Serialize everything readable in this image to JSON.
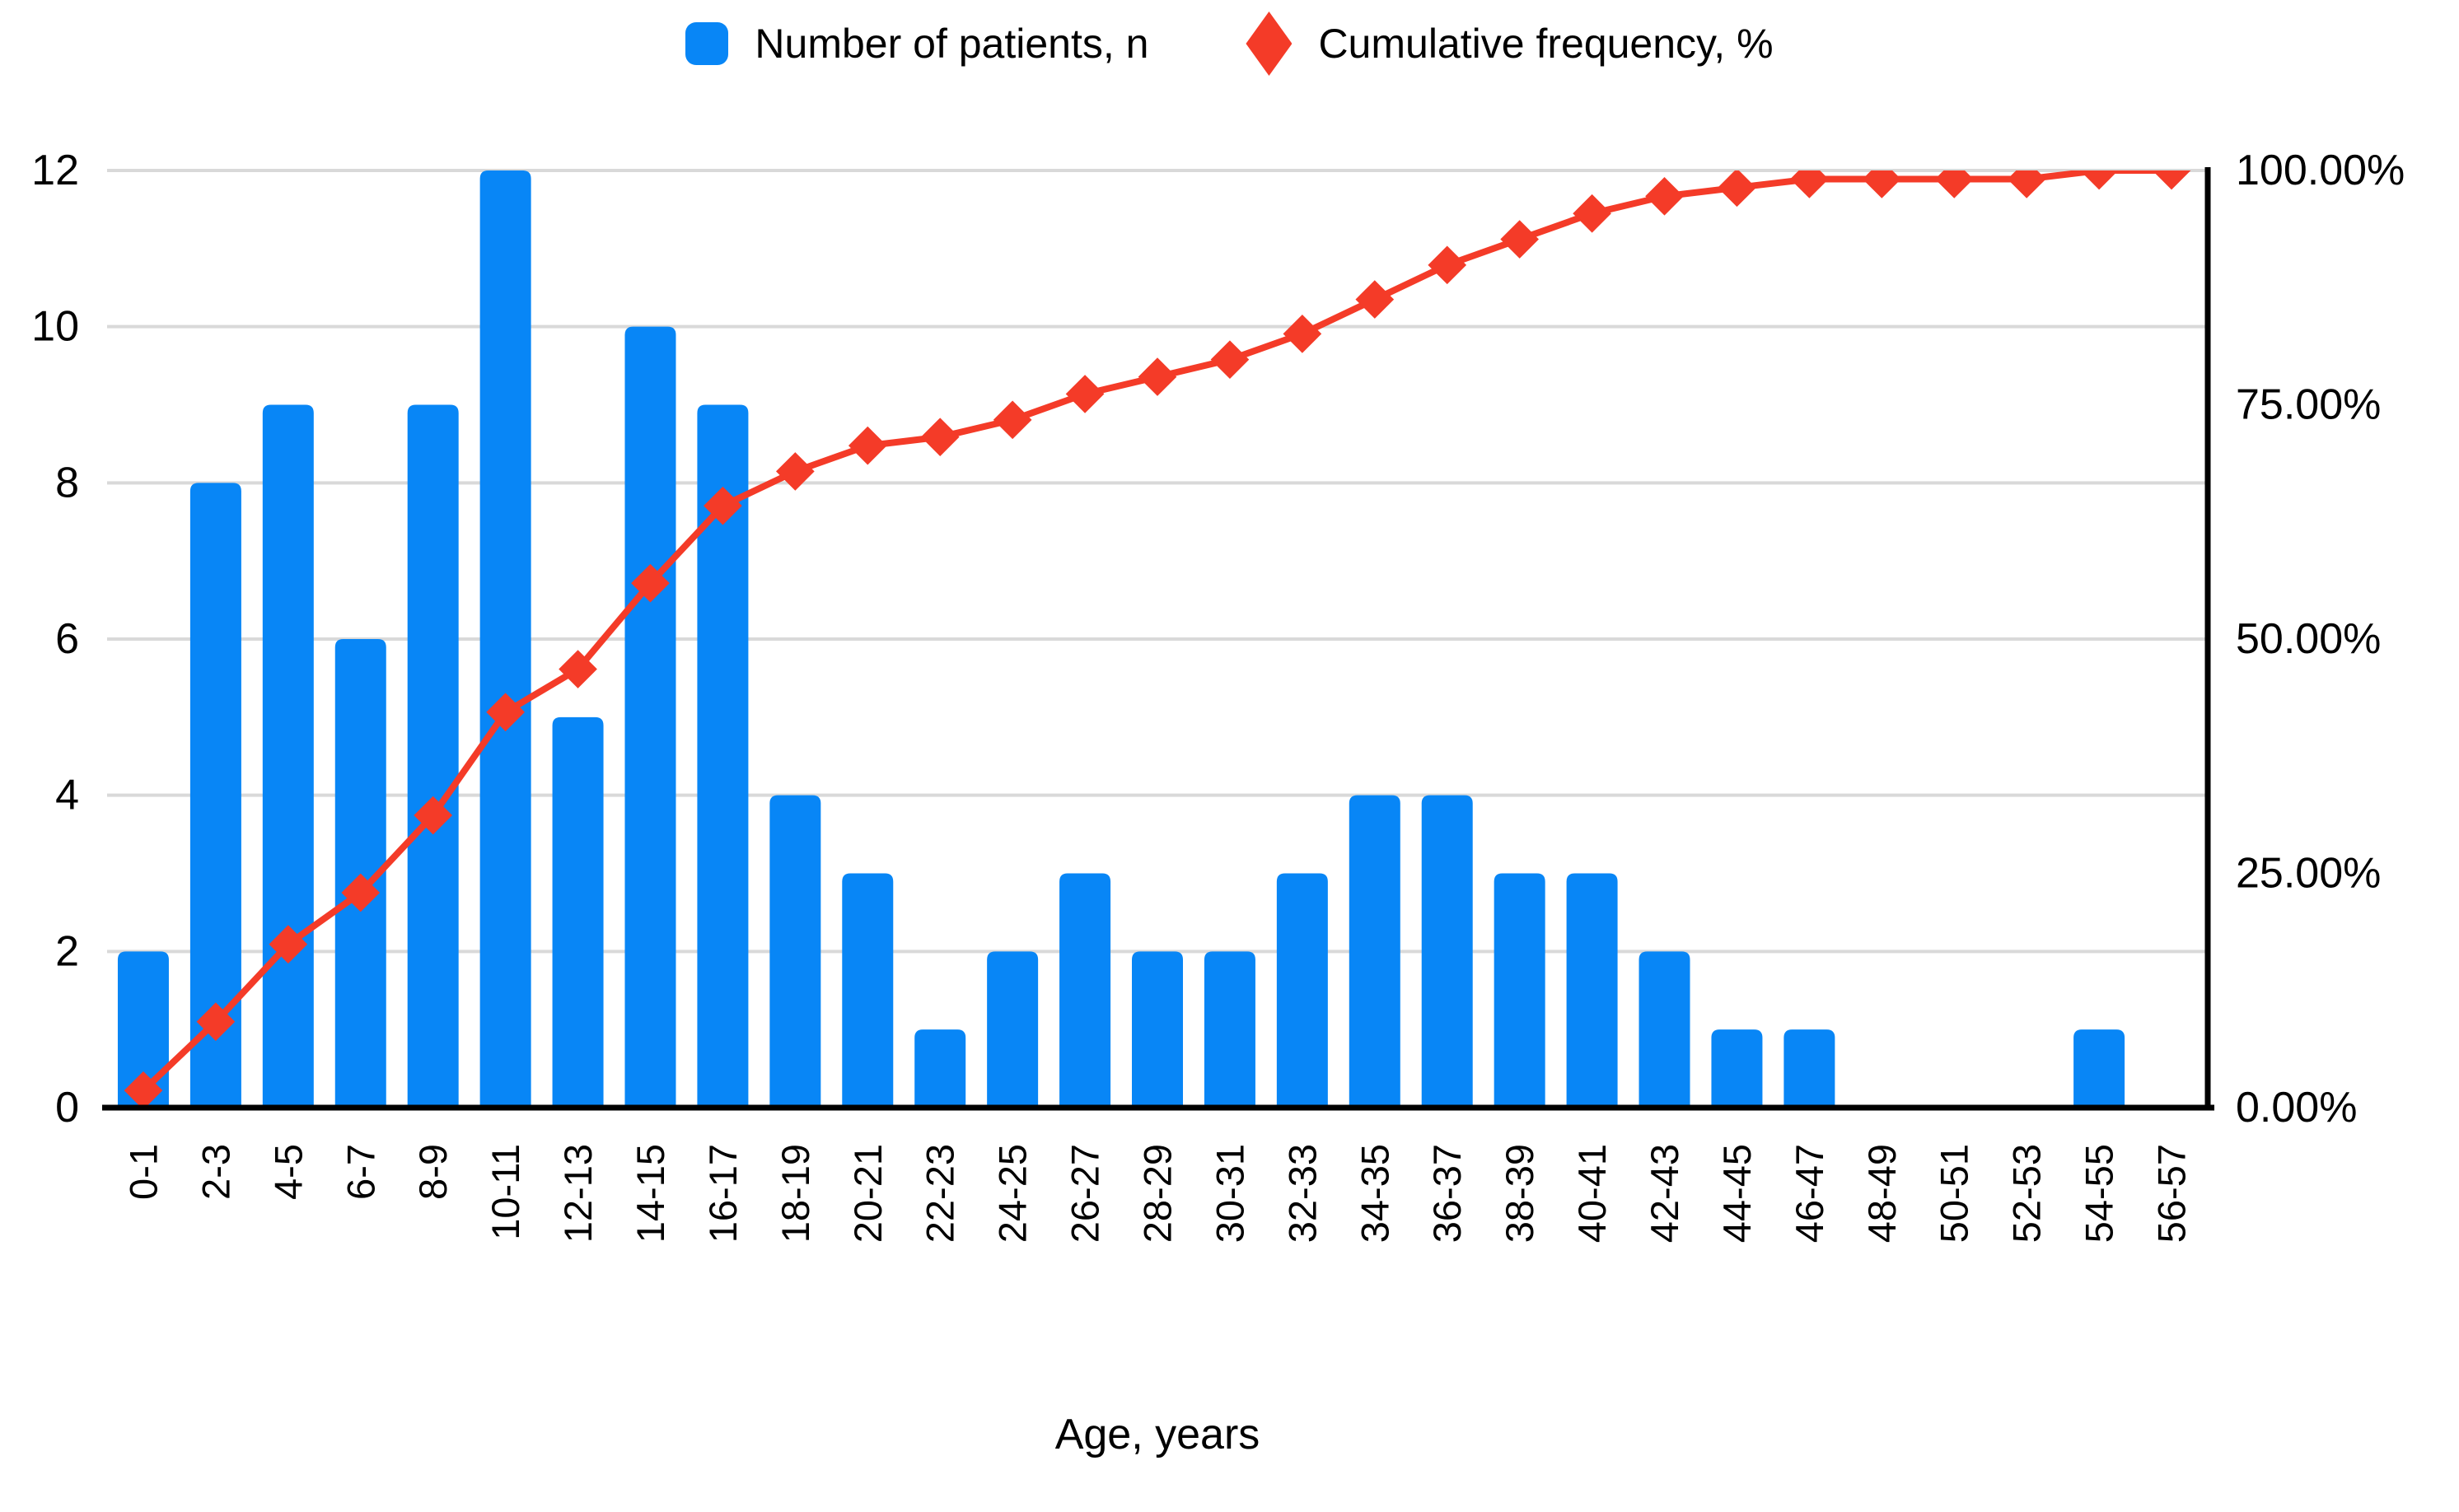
{
  "chart_data": {
    "type": "bar",
    "subtype": "pareto-combo",
    "title": "",
    "xlabel": "Age, years",
    "categories": [
      "0-1",
      "2-3",
      "4-5",
      "6-7",
      "8-9",
      "10-11",
      "12-13",
      "14-15",
      "16-17",
      "18-19",
      "20-21",
      "22-23",
      "24-25",
      "26-27",
      "28-29",
      "30-31",
      "32-33",
      "34-35",
      "36-37",
      "38-39",
      "40-41",
      "42-43",
      "44-45",
      "46-47",
      "48-49",
      "50-51",
      "52-53",
      "54-55",
      "56-57"
    ],
    "series": [
      {
        "name": "Number of patients, n",
        "type": "bar",
        "axis": "left",
        "color": "#0886f6",
        "values": [
          2,
          8,
          9,
          6,
          9,
          12,
          5,
          10,
          9,
          4,
          3,
          1,
          2,
          3,
          2,
          2,
          3,
          4,
          4,
          3,
          3,
          2,
          1,
          1,
          0,
          0,
          0,
          1,
          0
        ]
      },
      {
        "name": "Cumulative frequency, %",
        "type": "line",
        "axis": "right",
        "color": "#f43b28",
        "marker": "diamond",
        "values": [
          1.83,
          9.17,
          17.43,
          22.94,
          31.19,
          42.2,
          46.79,
          55.96,
          64.22,
          67.89,
          70.64,
          71.56,
          73.39,
          76.15,
          77.98,
          79.82,
          82.57,
          86.24,
          89.91,
          92.66,
          95.41,
          97.25,
          98.17,
          99.08,
          99.08,
          99.08,
          99.08,
          100.0,
          100.0
        ]
      }
    ],
    "left_axis": {
      "min": 0,
      "max": 12,
      "tick_values": [
        0,
        2,
        4,
        6,
        8,
        10,
        12
      ],
      "tick_labels": [
        "0",
        "2",
        "4",
        "6",
        "8",
        "10",
        "12"
      ]
    },
    "right_axis": {
      "min": 0,
      "max": 100,
      "tick_values": [
        0,
        25,
        50,
        75,
        100
      ],
      "tick_labels": [
        "0.00%",
        "25.00%",
        "50.00%",
        "75.00%",
        "100.00%"
      ]
    },
    "grid": true,
    "legend_position": "top",
    "gridline_color": "#d9d9d9",
    "axis_line_color": "#000000",
    "label_color": "#000000"
  },
  "legend": {
    "items": [
      {
        "label": "Number of patients, n",
        "swatch": "square",
        "color": "#0886f6"
      },
      {
        "label": "Cumulative frequency, %",
        "swatch": "diamond",
        "color": "#f43b28"
      }
    ]
  },
  "axis_title": "Age, years"
}
